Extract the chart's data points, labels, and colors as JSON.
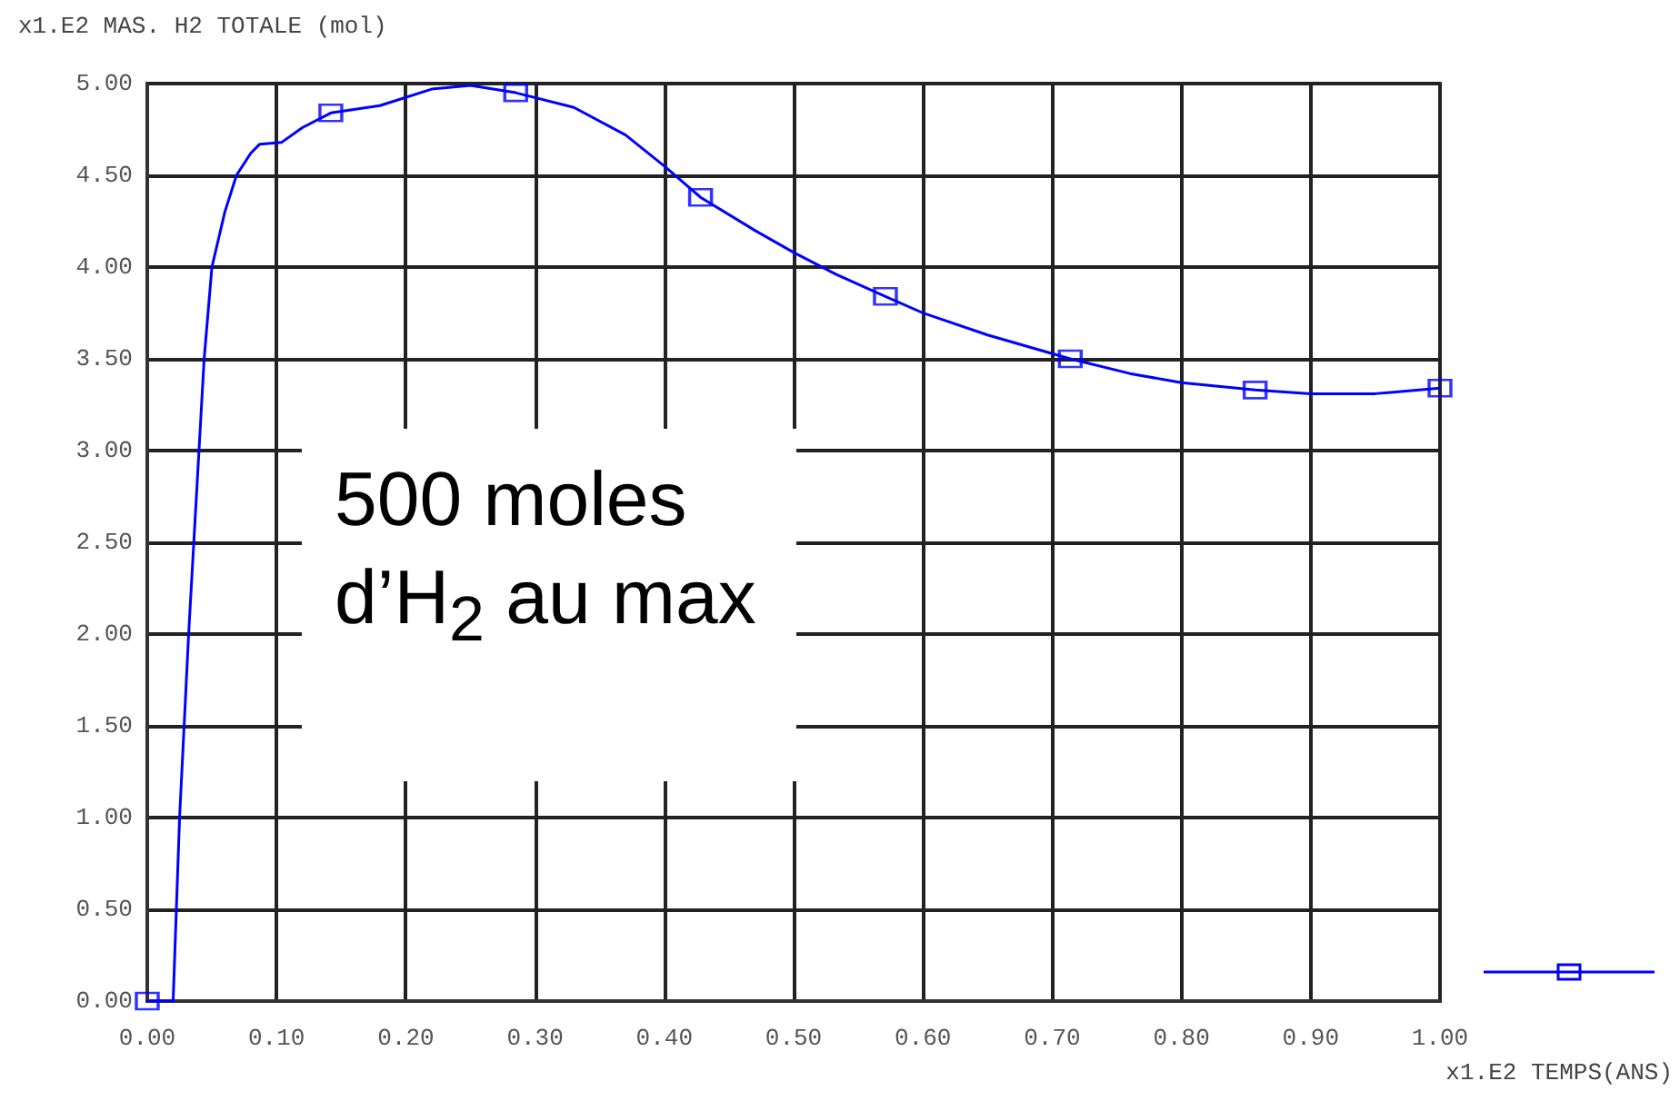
{
  "chart_data": {
    "type": "line",
    "ylabel": "x1.E2 MAS. H2 TOTALE (mol)",
    "xlabel": "x1.E2 TEMPS(ANS)",
    "annotations": [
      "500 moles d’H$_{2}$ au max"
    ],
    "xlim": [
      0,
      1
    ],
    "ylim": [
      0,
      5
    ],
    "xticks": [
      {
        "value": 0,
        "label": "0.00"
      },
      {
        "value": 0.1,
        "label": "0.10"
      },
      {
        "value": 0.2,
        "label": "0.20"
      },
      {
        "value": 0.3,
        "label": "0.30"
      },
      {
        "value": 0.4,
        "label": "0.40"
      },
      {
        "value": 0.5,
        "label": "0.50"
      },
      {
        "value": 0.6,
        "label": "0.60"
      },
      {
        "value": 0.7,
        "label": "0.70"
      },
      {
        "value": 0.8,
        "label": "0.80"
      },
      {
        "value": 0.9,
        "label": "0.90"
      },
      {
        "value": 1,
        "label": "1.00"
      }
    ],
    "yticks": [
      {
        "value": 0,
        "label": "0.00"
      },
      {
        "value": 0.5,
        "label": "0.50"
      },
      {
        "value": 1,
        "label": "1.00"
      },
      {
        "value": 1.5,
        "label": "1.50"
      },
      {
        "value": 2,
        "label": "2.00"
      },
      {
        "value": 2.5,
        "label": "2.50"
      },
      {
        "value": 3,
        "label": "3.00"
      },
      {
        "value": 3.5,
        "label": "3.50"
      },
      {
        "value": 4,
        "label": "4.00"
      },
      {
        "value": 4.5,
        "label": "4.50"
      },
      {
        "value": 5,
        "label": "5.00"
      }
    ],
    "grid": true,
    "line_style": "solid",
    "series": [
      {
        "marker": "none",
        "color": "#0000ff",
        "x": [
          0,
          0.02,
          0.025,
          0.032,
          0.036,
          0.044,
          0.05,
          0.06,
          0.069,
          0.08,
          0.087,
          0.104,
          0.12,
          0.142,
          0.18,
          0.22,
          0.25,
          0.285,
          0.33,
          0.37,
          0.4,
          0.428,
          0.47,
          0.5,
          0.533,
          0.571,
          0.6,
          0.65,
          0.714,
          0.76,
          0.8,
          0.857,
          0.9,
          0.95,
          1.0
        ],
        "values": [
          0,
          0,
          1.0,
          2.0,
          2.5,
          3.5,
          4.0,
          4.3,
          4.5,
          4.62,
          4.67,
          4.68,
          4.76,
          4.84,
          4.88,
          4.97,
          4.99,
          4.95,
          4.87,
          4.72,
          4.55,
          4.38,
          4.2,
          4.08,
          3.96,
          3.84,
          3.75,
          3.63,
          3.5,
          3.42,
          3.37,
          3.33,
          3.31,
          3.31,
          3.34
        ]
      },
      {
        "type": "scatter",
        "marker": "square",
        "color": "#0000ff",
        "x": [
          0,
          0.142,
          0.285,
          0.428,
          0.571,
          0.714,
          0.857,
          1.0
        ],
        "values": [
          0,
          4.84,
          4.95,
          4.38,
          3.84,
          3.5,
          3.33,
          3.34
        ]
      }
    ]
  }
}
